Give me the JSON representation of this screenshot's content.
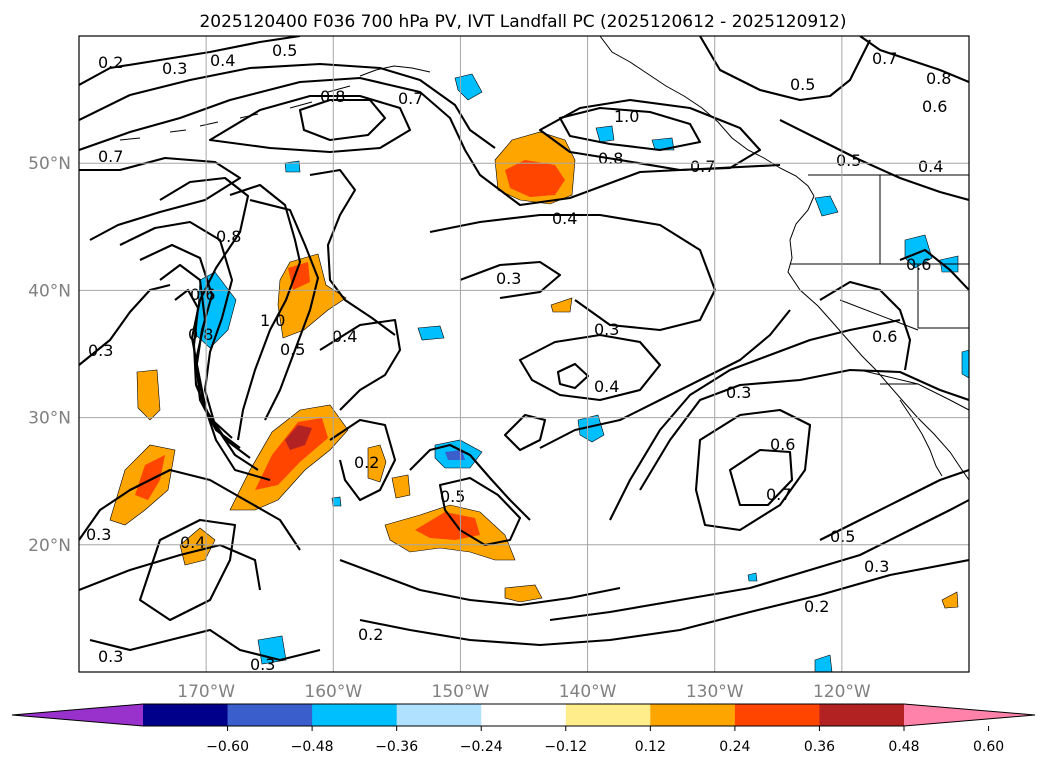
{
  "title": "2025120400 F036 700 hPa PV, IVT Landfall PC (2025120612 - 2025120912)",
  "map": {
    "lon_range": [
      -180,
      -110
    ],
    "lat_range": [
      10,
      60
    ],
    "lat_ticks": [
      {
        "lat": 50,
        "label": "50°N"
      },
      {
        "lat": 40,
        "label": "40°N"
      },
      {
        "lat": 30,
        "label": "30°N"
      },
      {
        "lat": 20,
        "label": "20°N"
      }
    ],
    "lon_ticks": [
      {
        "lon": -170,
        "label": "170°W"
      },
      {
        "lon": -160,
        "label": "160°W"
      },
      {
        "lon": -150,
        "label": "150°W"
      },
      {
        "lon": -140,
        "label": "140°W"
      },
      {
        "lon": -130,
        "label": "130°W"
      },
      {
        "lon": -120,
        "label": "120°W"
      }
    ]
  },
  "colorbar": {
    "bounds": [
      -0.6,
      -0.48,
      -0.36,
      -0.24,
      -0.12,
      0.12,
      0.24,
      0.36,
      0.48,
      0.6
    ],
    "tick_labels": [
      "−0.60",
      "−0.48",
      "−0.36",
      "−0.24",
      "−0.12",
      "0.12",
      "0.24",
      "0.36",
      "0.48",
      "0.60"
    ],
    "colors": [
      "#9932cc",
      "#00008b",
      "#3a5fcd",
      "#00bfff",
      "#b0e2ff",
      "#ffffff",
      "#ffec8b",
      "#ffa500",
      "#ff4500",
      "#b22222",
      "#ff82ab"
    ]
  },
  "pv_contour_labels": [
    "0.2",
    "0.3",
    "0.4",
    "0.5",
    "0.8",
    "0.7",
    "1.0",
    "0.8",
    "0.7",
    "0.5",
    "0.7",
    "0.8",
    "0.6",
    "0.5",
    "0.4",
    "0.7",
    "0.4",
    "0.8",
    "0.6",
    "0.8",
    "1.0",
    "0.5",
    "0.4",
    "0.3",
    "0.3",
    "0.4",
    "0.6",
    "0.6",
    "0.3",
    "0.6",
    "0.7",
    "0.5",
    "0.3",
    "0.2",
    "0.3",
    "0.3",
    "0.4",
    "0.3",
    "0.5",
    "0.2",
    "0.2",
    "0.3"
  ],
  "chart_data": {
    "type": "map",
    "title": "2025120400 F036 700 hPa PV, IVT Landfall PC (2025120612 - 2025120912)",
    "fields": [
      "700 hPa PV (black contours)",
      "IVT Landfall PC (filled)"
    ],
    "colorbar_range": [
      -0.6,
      0.6
    ]
  }
}
